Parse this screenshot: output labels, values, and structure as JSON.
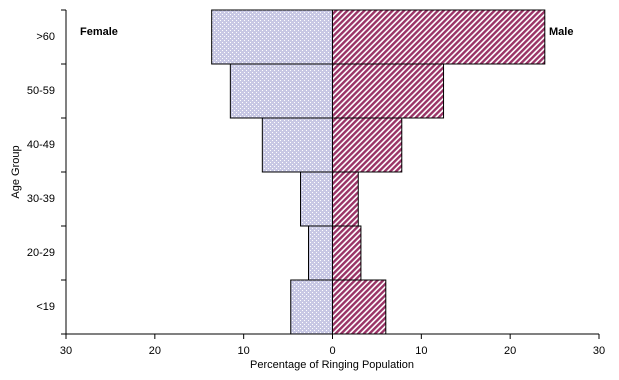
{
  "chart_data": {
    "type": "pyramid",
    "x_label": "Percentage of Ringing Population",
    "y_label": "Age Group",
    "categories": [
      ">60",
      "50-59",
      "40-49",
      "30-39",
      "20-29",
      "<19"
    ],
    "series": [
      {
        "name": "Female",
        "color": "#c8c8e4",
        "values": [
          -13.6,
          -11.5,
          -7.9,
          -3.6,
          -2.7,
          -4.7
        ]
      },
      {
        "name": "Male",
        "color": "#993366",
        "values": [
          23.9,
          12.5,
          7.8,
          2.9,
          3.2,
          6.0
        ]
      }
    ],
    "xlim": [
      -30,
      30
    ],
    "xticks": [
      {
        "value": -30,
        "label": "30"
      },
      {
        "value": -20,
        "label": "20"
      },
      {
        "value": -10,
        "label": "10"
      },
      0,
      10,
      20,
      30
    ]
  }
}
